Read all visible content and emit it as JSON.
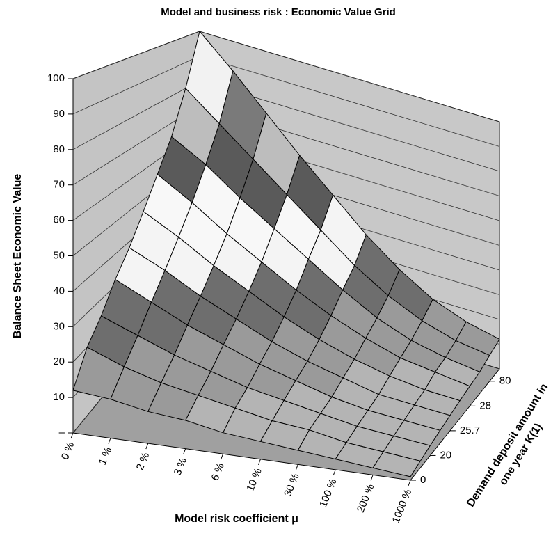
{
  "chart_data": {
    "type": "surface",
    "title": "Model and business risk : Economic Value Grid",
    "x_label": "Model risk coefficient μ",
    "y_label": [
      "Demand deposit amount in",
      "one year K(1)"
    ],
    "z_label": "Balance Sheet Economic Value",
    "x_categories": [
      "0 %",
      "1 %",
      "2 %",
      "3 %",
      "6 %",
      "10 %",
      "30 %",
      "100 %",
      "200 %",
      "1000 %"
    ],
    "y_categories": [
      "0",
      null,
      "20",
      null,
      "25.7",
      null,
      "28",
      null,
      "80",
      null
    ],
    "zlim": [
      0,
      100
    ],
    "zticks": [
      {
        "value": 0,
        "label": "–"
      },
      10,
      20,
      30,
      40,
      50,
      60,
      70,
      80,
      90,
      100
    ],
    "grid": true,
    "band_colors": [
      "#b4b4b4",
      "#9a9a9a",
      "#6e6e6e",
      "#f4f4f4",
      "#f8f8f8",
      "#5a5a5a",
      "#bdbdbd",
      "#7a7a7a",
      "#f2f2f2",
      "#4e4e4e"
    ],
    "values": [
      [
        12,
        11,
        9,
        8,
        6,
        5,
        4,
        3,
        2,
        1
      ],
      [
        20,
        16,
        13,
        11,
        9,
        7,
        6,
        4,
        3,
        2
      ],
      [
        25,
        21,
        17,
        14,
        11,
        9,
        7,
        5,
        4,
        3
      ],
      [
        32,
        27,
        22,
        18,
        14,
        11,
        8,
        6,
        5,
        4
      ],
      [
        38,
        33,
        27,
        22,
        17,
        13,
        10,
        7,
        6,
        5
      ],
      [
        46,
        40,
        33,
        27,
        21,
        16,
        12,
        9,
        7,
        6
      ],
      [
        55,
        48,
        40,
        33,
        26,
        20,
        15,
        11,
        9,
        7
      ],
      [
        65,
        58,
        49,
        41,
        33,
        25,
        18,
        13,
        10,
        8
      ],
      [
        80,
        70,
        60,
        50,
        40,
        30,
        22,
        16,
        12,
        10
      ],
      [
        100,
        88,
        75,
        62,
        50,
        38,
        28,
        20,
        15,
        12
      ]
    ]
  }
}
